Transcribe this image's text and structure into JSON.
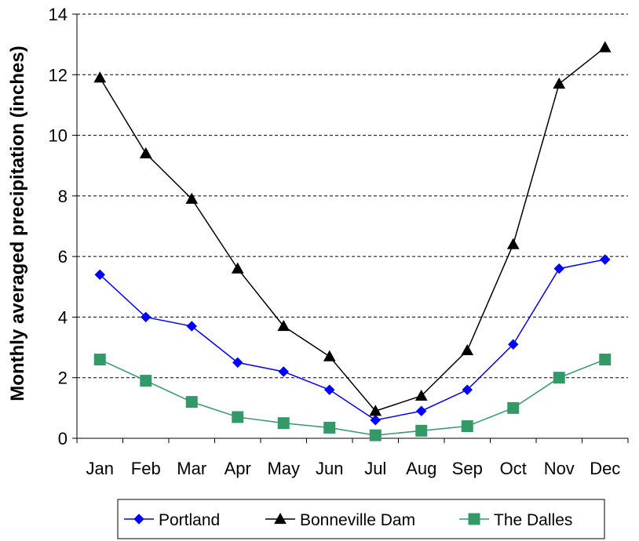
{
  "chart_data": {
    "type": "line",
    "title": "",
    "xlabel": "",
    "ylabel": "Monthly averaged precipitation (inches)",
    "ylim": [
      0,
      14
    ],
    "yticks": [
      0,
      2,
      4,
      6,
      8,
      10,
      12,
      14
    ],
    "grid": "horizontal dashed",
    "legend_position": "bottom",
    "categories": [
      "Jan",
      "Feb",
      "Mar",
      "Apr",
      "May",
      "Jun",
      "Jul",
      "Aug",
      "Sep",
      "Oct",
      "Nov",
      "Dec"
    ],
    "series": [
      {
        "name": "Portland",
        "color": "#0000FF",
        "marker": "diamond",
        "values": [
          5.4,
          4.0,
          3.7,
          2.5,
          2.2,
          1.6,
          0.6,
          0.9,
          1.6,
          3.1,
          5.6,
          5.9
        ]
      },
      {
        "name": "Bonneville Dam",
        "color": "#000000",
        "marker": "triangle",
        "values": [
          11.9,
          9.4,
          7.9,
          5.6,
          3.7,
          2.7,
          0.9,
          1.4,
          2.9,
          6.4,
          11.7,
          12.9
        ]
      },
      {
        "name": "The Dalles",
        "color": "#339966",
        "marker": "square",
        "values": [
          2.6,
          1.9,
          1.2,
          0.7,
          0.5,
          0.35,
          0.1,
          0.25,
          0.4,
          1.0,
          2.0,
          2.6
        ]
      }
    ]
  }
}
